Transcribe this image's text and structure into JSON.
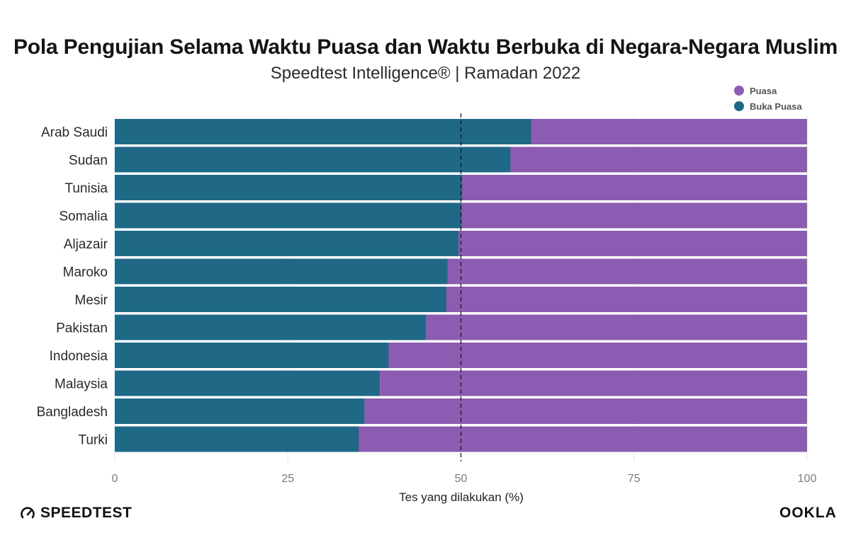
{
  "header": {
    "title": "Pola Pengujian Selama Waktu Puasa dan Waktu Berbuka di Negara-Negara Muslim",
    "subtitle": "Speedtest Intelligence® | Ramadan 2022"
  },
  "branding": {
    "speedtest_label": "SPEEDTEST",
    "ookla_label": "OOKLA"
  },
  "colors": {
    "buka_puasa": "#1f6987",
    "puasa": "#8b5cb1",
    "gridline": "#e6e6e6",
    "reference_line": "#111111"
  },
  "chart_data": {
    "type": "bar",
    "orientation": "horizontal",
    "stacked": true,
    "title": "Pola Pengujian Selama Waktu Puasa dan Waktu Berbuka di Negara-Negara Muslim",
    "subtitle": "Speedtest Intelligence® | Ramadan 2022",
    "xlabel": "Tes yang dilakukan (%)",
    "ylabel": "",
    "xlim": [
      0,
      100
    ],
    "xticks": [
      0,
      25,
      50,
      75,
      100
    ],
    "reference_line": 50,
    "grid": true,
    "legend_position": "top-right",
    "categories": [
      "Arab Saudi",
      "Sudan",
      "Tunisia",
      "Somalia",
      "Aljazair",
      "Maroko",
      "Mesir",
      "Pakistan",
      "Indonesia",
      "Malaysia",
      "Bangladesh",
      "Turki"
    ],
    "series": [
      {
        "name": "Buka Puasa",
        "color": "#1f6987",
        "values": [
          60.2,
          57.2,
          50.2,
          50.1,
          49.7,
          48.1,
          47.9,
          45.0,
          39.6,
          38.3,
          36.1,
          35.3
        ]
      },
      {
        "name": "Puasa",
        "color": "#8b5cb1",
        "values": [
          39.8,
          42.8,
          49.8,
          49.9,
          50.3,
          51.9,
          52.1,
          55.0,
          60.4,
          61.7,
          63.9,
          64.7
        ]
      }
    ],
    "legend": [
      "Puasa",
      "Buka Puasa"
    ]
  }
}
